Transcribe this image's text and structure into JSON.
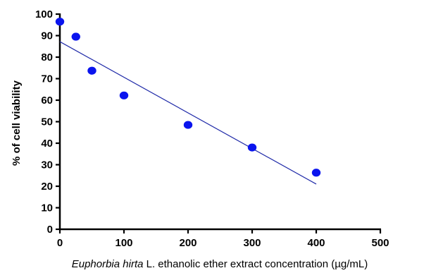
{
  "chart_data": {
    "type": "scatter",
    "title": "",
    "xlabel": {
      "italic": "Euphorbia hirta",
      "rest": " L. ethanolic ether extract concentration (µg/mL)"
    },
    "ylabel": "% of cell viability",
    "xlim": [
      0,
      500
    ],
    "ylim": [
      0,
      100
    ],
    "xticks": [
      "0",
      "100",
      "200",
      "300",
      "400",
      "500"
    ],
    "yticks": [
      "0",
      "10",
      "20",
      "30",
      "40",
      "50",
      "60",
      "70",
      "80",
      "90",
      "100"
    ],
    "series": [
      {
        "x": [
          0,
          25,
          50,
          100,
          200,
          300,
          400
        ],
        "y": [
          96.5,
          89.5,
          73.7,
          62.2,
          48.5,
          38.0,
          26.3
        ]
      }
    ],
    "trendline": {
      "x": [
        0,
        400
      ],
      "y": [
        87.2,
        21.0
      ]
    },
    "colors": {
      "points": "#0a14ee",
      "line": "#1f2aa8",
      "axis": "#000000"
    },
    "grid": false
  }
}
